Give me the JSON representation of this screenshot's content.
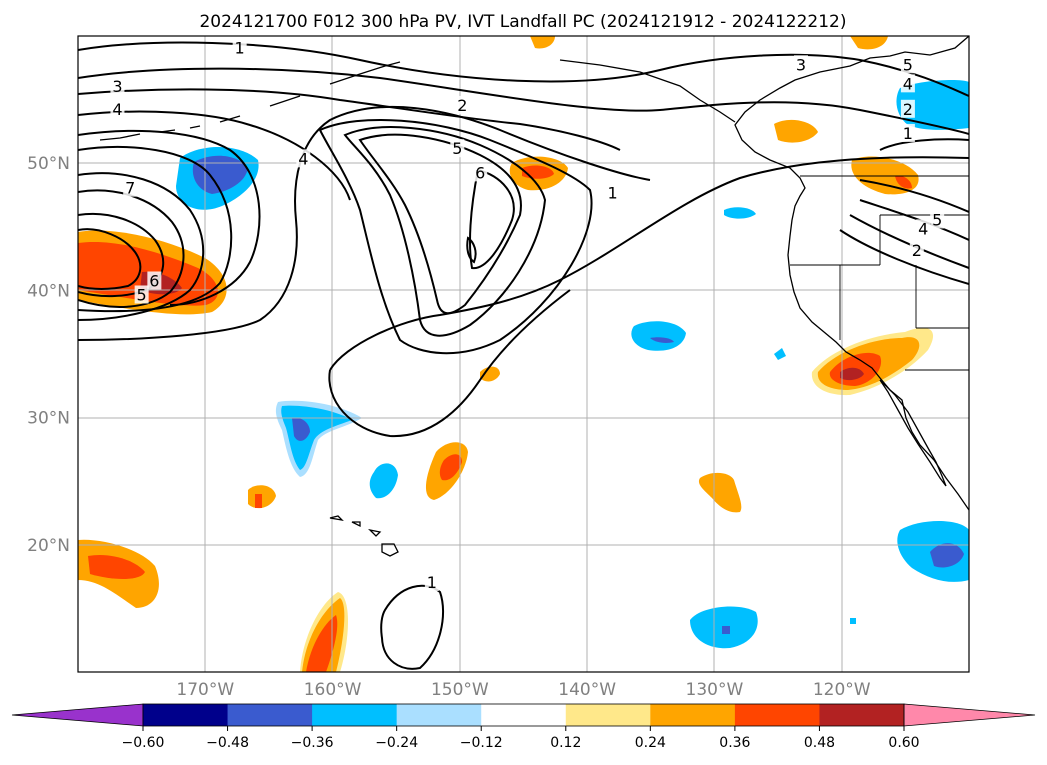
{
  "title": "2024121700 F012 300 hPa PV, IVT Landfall PC (2024121912 - 2024122212)",
  "map": {
    "projection": "plate-carree",
    "lon_range": [
      -180,
      -110
    ],
    "lat_range": [
      10,
      60
    ],
    "grid": true,
    "lat_labels": [
      {
        "lat": 50,
        "text": "50°N"
      },
      {
        "lat": 40,
        "text": "40°N"
      },
      {
        "lat": 30,
        "text": "30°N"
      },
      {
        "lat": 20,
        "text": "20°N"
      }
    ],
    "lon_labels": [
      {
        "lon": -170,
        "text": "170°W"
      },
      {
        "lon": -160,
        "text": "160°W"
      },
      {
        "lon": -150,
        "text": "150°W"
      },
      {
        "lon": -140,
        "text": "140°W"
      },
      {
        "lon": -130,
        "text": "130°W"
      },
      {
        "lon": -120,
        "text": "120°W"
      }
    ]
  },
  "contour_labels": [
    {
      "text": "1",
      "lon": -167.3,
      "lat": 59.0
    },
    {
      "text": "3",
      "lon": -176.9,
      "lat": 56.0
    },
    {
      "text": "4",
      "lon": -176.9,
      "lat": 54.2
    },
    {
      "text": "7",
      "lon": -175.9,
      "lat": 48.0
    },
    {
      "text": "6",
      "lon": -174.0,
      "lat": 40.7
    },
    {
      "text": "5",
      "lon": -175.0,
      "lat": 39.6
    },
    {
      "text": "4",
      "lon": -162.3,
      "lat": 50.3
    },
    {
      "text": "2",
      "lon": -149.8,
      "lat": 54.5
    },
    {
      "text": "5",
      "lon": -150.2,
      "lat": 51.1
    },
    {
      "text": "6",
      "lon": -148.4,
      "lat": 49.2
    },
    {
      "text": "1",
      "lon": -138.0,
      "lat": 47.6
    },
    {
      "text": "3",
      "lon": -123.2,
      "lat": 57.7
    },
    {
      "text": "5",
      "lon": -114.8,
      "lat": 57.7
    },
    {
      "text": "4",
      "lon": -114.8,
      "lat": 56.2
    },
    {
      "text": "2",
      "lon": -114.8,
      "lat": 54.2
    },
    {
      "text": "1",
      "lon": -114.8,
      "lat": 52.3
    },
    {
      "text": "5",
      "lon": -112.5,
      "lat": 45.5
    },
    {
      "text": "4",
      "lon": -113.6,
      "lat": 44.8
    },
    {
      "text": "2",
      "lon": -114.1,
      "lat": 43.1
    },
    {
      "text": "1",
      "lon": -152.2,
      "lat": 17.0
    }
  ],
  "colorbar": {
    "levels": [
      -0.6,
      -0.48,
      -0.36,
      -0.24,
      -0.12,
      0.12,
      0.24,
      0.36,
      0.48,
      0.6
    ],
    "tick_labels": [
      "−0.60",
      "−0.48",
      "−0.36",
      "−0.24",
      "−0.12",
      "0.12",
      "0.24",
      "0.36",
      "0.48",
      "0.60"
    ],
    "under_color": "#9932cc",
    "over_color": "#ff88aa",
    "colors": [
      "#00008b",
      "#3a5bcf",
      "#00bfff",
      "#aadfff",
      "#ffffff",
      "#ffe88a",
      "#ffa500",
      "#ff4500",
      "#b22222"
    ]
  },
  "colors": {
    "contour": "#000000",
    "coast": "#000000",
    "grid": "#b0b0b0"
  }
}
